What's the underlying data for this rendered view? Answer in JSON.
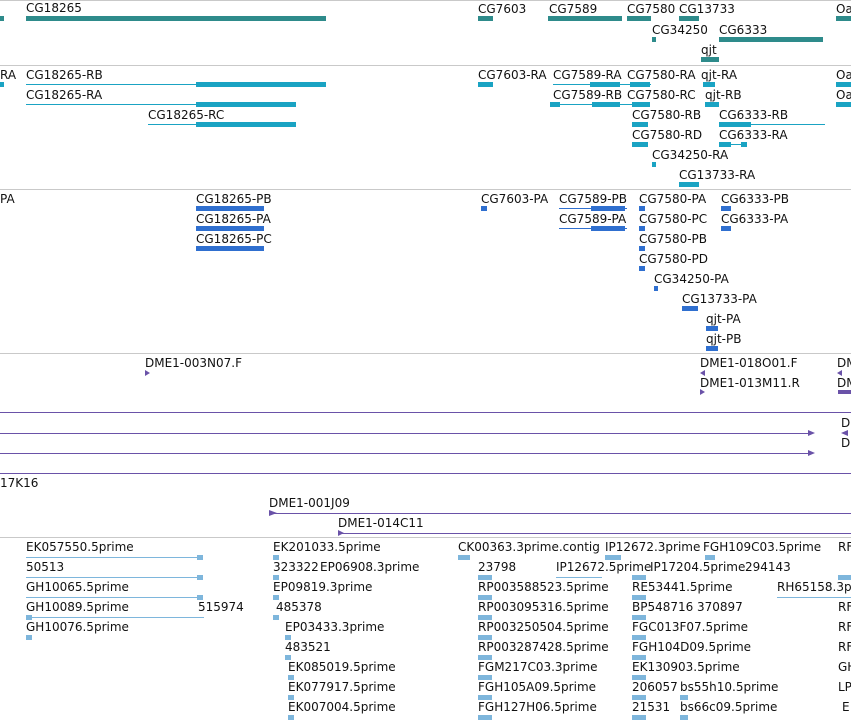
{
  "colors": {
    "gene": "#2e8b8b",
    "transcript": "#1aa3c3",
    "protein": "#2f6fcf",
    "clone": "#6a52a8",
    "est": "#7eb6dc",
    "separator": "#c9c9c9"
  },
  "gene_track": {
    "labels": [
      "CG18265",
      "CG7603",
      "CG7589",
      "CG7580",
      "CG13733",
      "CG34250",
      "CG6333",
      "qjt",
      "Oa"
    ]
  },
  "transcript_track": {
    "labels": [
      "RA",
      "CG18265-RB",
      "CG18265-RA",
      "CG18265-RC",
      "CG7603-RA",
      "CG7589-RA",
      "CG7580-RA",
      "qjt-RA",
      "CG7589-RB",
      "CG7580-RC",
      "qjt-RB",
      "CG7580-RB",
      "CG6333-RB",
      "CG7580-RD",
      "CG6333-RA",
      "CG34250-RA",
      "CG13733-RA",
      "Oa",
      "Oa"
    ]
  },
  "protein_track": {
    "labels": [
      "PA",
      "CG18265-PB",
      "CG18265-PA",
      "CG18265-PC",
      "CG7603-PA",
      "CG7589-PB",
      "CG7589-PA",
      "CG7580-PA",
      "CG6333-PB",
      "CG7580-PC",
      "CG6333-PA",
      "CG7580-PB",
      "CG7580-PD",
      "CG34250-PA",
      "CG13733-PA",
      "qjt-PA",
      "qjt-PB"
    ]
  },
  "clone_track": {
    "labels": [
      "DME1-003N07.F",
      "DME1-018O01.F",
      "DME1-013M11.R",
      "DM",
      "DM"
    ]
  },
  "bac_track": {
    "labels": [
      "D",
      "D",
      "17K16",
      "DME1-001J09",
      "DME1-014C11"
    ]
  },
  "est_track": {
    "labels": [
      "EK057550.5prime",
      "50513",
      "GH10065.5prime",
      "GH10089.5prime",
      "515974",
      "GH10076.5prime",
      "EK201033.5prime",
      "323322",
      "EP06908.3prime",
      "EP09819.3prime",
      "485378",
      "EP03433.3prime",
      "483521",
      "EK085019.5prime",
      "EK077917.5prime",
      "EK007004.5prime",
      "CK00363.3prime.contig",
      "IP12672.3prime",
      "FGH109C03.5prime",
      "RF",
      "23798",
      "IP12672.5prime",
      "IP17204.5prime",
      "294143",
      "RP003588523.5prime",
      "RE53441.5prime",
      "RH65158.3p",
      "RP003095316.5prime",
      "BP548716",
      "370897",
      "RP003250504.5prime",
      "FGC013F07.5prime",
      "RP003287428.5prime",
      "FGH104D09.5prime",
      "FGM217C03.3prime",
      "EK130903.5prime",
      "FGH105A09.5prime",
      "206057",
      "bs55h10.5prime",
      "FGH127H06.5prime",
      "21531",
      "bs66c09.5prime",
      "RF",
      "RF",
      "RF",
      "GH",
      "LP",
      "E"
    ]
  }
}
